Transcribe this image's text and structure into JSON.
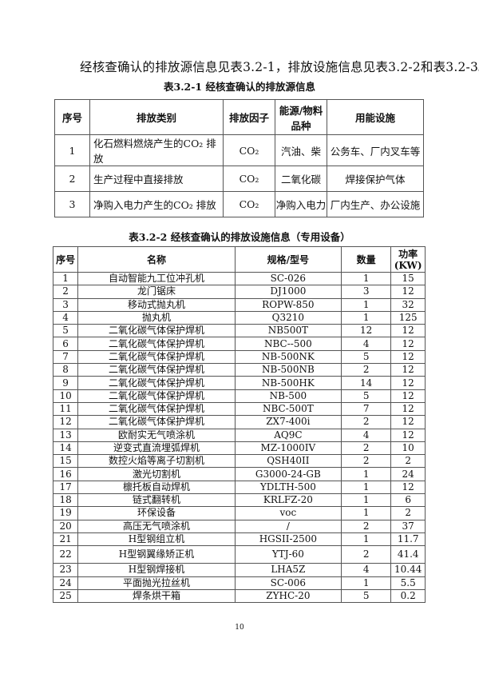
{
  "intro": "经核查确认的排放源信息见表3.2-1，排放设施信息见表3.2-2和表3.2-3。",
  "table1": {
    "caption": "表3.2-1 经核查确认的排放源信息",
    "headers": [
      "序号",
      "排放类别",
      "排放因子",
      "能源/物料品种",
      "用能设施"
    ],
    "rows": [
      [
        "1",
        "化石燃料燃烧产生的CO₂ 排放",
        "CO₂",
        "汽油、柴",
        "公务车、厂内叉车等"
      ],
      [
        "2",
        "生产过程中直接排放",
        "CO₂",
        "二氧化碳",
        "焊接保护气体"
      ],
      [
        "3",
        "净购入电力产生的CO₂ 排放",
        "CO₂",
        "净购入电力",
        "厂内生产、办公设施"
      ]
    ]
  },
  "table2": {
    "caption": "表3.2-2 经核查确认的排放设施信息（专用设备）",
    "headers": [
      "序号",
      "名称",
      "规格/型号",
      "数量",
      "功率(KW)"
    ],
    "rows": [
      [
        "1",
        "自动智能九工位冲孔机",
        "SC-026",
        "1",
        "15"
      ],
      [
        "2",
        "龙门锯床",
        "DJ1000",
        "3",
        "12"
      ],
      [
        "3",
        "移动式抛丸机",
        "ROPW-850",
        "1",
        "32"
      ],
      [
        "4",
        "抛丸机",
        "Q3210",
        "1",
        "125"
      ],
      [
        "5",
        "二氧化碳气体保护焊机",
        "NB500T",
        "12",
        "12"
      ],
      [
        "6",
        "二氧化碳气体保护焊机",
        "NBC--500",
        "4",
        "12"
      ],
      [
        "7",
        "二氧化碳气体保护焊机",
        "NB-500NK",
        "5",
        "12"
      ],
      [
        "8",
        "二氧化碳气体保护焊机",
        "NB-500NB",
        "2",
        "12"
      ],
      [
        "9",
        "二氧化碳气体保护焊机",
        "NB-500HK",
        "14",
        "12"
      ],
      [
        "10",
        "二氧化碳气体保护焊机",
        "NB-500",
        "5",
        "12"
      ],
      [
        "11",
        "二氧化碳气体保护焊机",
        "NBC-500T",
        "7",
        "12"
      ],
      [
        "12",
        "二氧化碳气体保护焊机",
        "ZX7-400i",
        "2",
        "12"
      ],
      [
        "13",
        "欧耐实无气喷涂机",
        "AQ9C",
        "4",
        "12"
      ],
      [
        "14",
        "逆变式直流埋弧焊机",
        "MZ-1000IV",
        "2",
        "10"
      ],
      [
        "15",
        "数控火焰等离子切割机",
        "QSH40II",
        "2",
        "2"
      ],
      [
        "16",
        "激光切割机",
        "G3000-24-GB",
        "1",
        "24"
      ],
      [
        "17",
        "檩托板自动焊机",
        "YDLTH-500",
        "1",
        "12"
      ],
      [
        "18",
        "链式翻转机",
        "KRLFZ-20",
        "1",
        "6"
      ],
      [
        "19",
        "环保设备",
        "voc",
        "1",
        "2"
      ],
      [
        "20",
        "高压无气喷涂机",
        "/",
        "2",
        "37"
      ],
      [
        "21",
        "H型钢组立机",
        "HGSII-2500",
        "1",
        "11.7"
      ],
      [
        "22",
        "H型钢翼缘矫正机",
        "YTJ-60",
        "2",
        "41.4"
      ],
      [
        "23",
        "H型钢焊接机",
        "LHA5Z",
        "4",
        "10.44"
      ],
      [
        "24",
        "平面抛光拉丝机",
        "SC-006",
        "1",
        "5.5"
      ],
      [
        "25",
        "焊条烘干箱",
        "ZYHC-20",
        "5",
        "0.2"
      ]
    ]
  },
  "page_number": "10"
}
